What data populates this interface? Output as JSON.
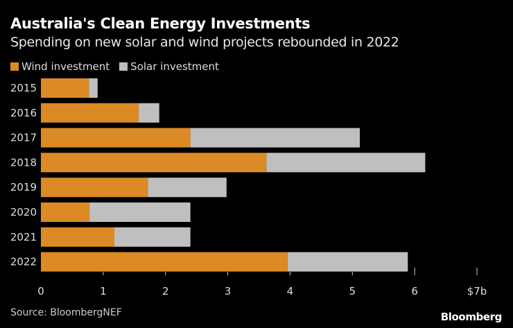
{
  "chart_data": {
    "type": "bar",
    "orientation": "horizontal",
    "stacked": true,
    "title": "Australia's Clean Energy Investments",
    "subtitle": "Spending on new solar and wind projects rebounded in 2022",
    "categories": [
      "2015",
      "2016",
      "2017",
      "2018",
      "2019",
      "2020",
      "2021",
      "2022"
    ],
    "series": [
      {
        "name": "Wind investment",
        "color": "#dc8a25",
        "values": [
          0.77,
          1.57,
          2.4,
          3.62,
          1.72,
          0.78,
          1.18,
          3.96
        ]
      },
      {
        "name": "Solar investment",
        "color": "#bfbfbf",
        "values": [
          0.14,
          0.33,
          2.72,
          2.55,
          1.26,
          1.62,
          1.22,
          1.93
        ]
      }
    ],
    "xlim": [
      0,
      7
    ],
    "xticks": [
      "0",
      "1",
      "2",
      "3",
      "4",
      "5",
      "6",
      "$7b"
    ],
    "xlabel": "",
    "ylabel": "",
    "grid": false,
    "legend": "top-left"
  },
  "source": "Source: BloombergNEF",
  "logo": "Bloomberg"
}
